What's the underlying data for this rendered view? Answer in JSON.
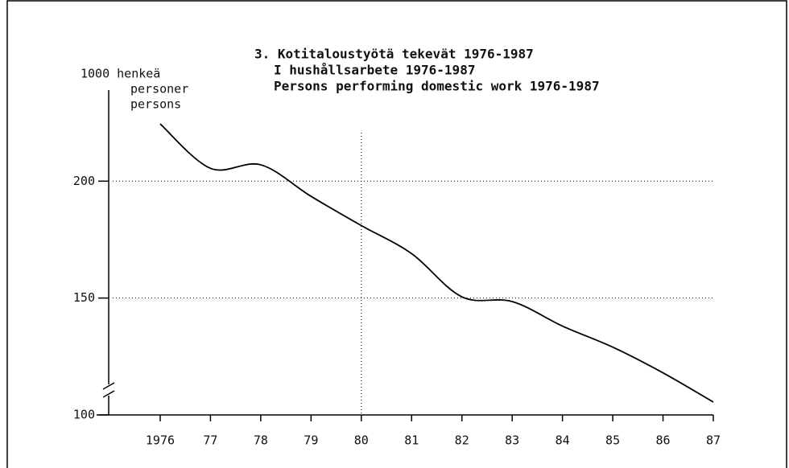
{
  "chart_data": {
    "type": "line",
    "title": [
      "3. Kotitaloustyötä tekevät 1976-1987",
      "I hushållsarbete 1976-1987",
      "Persons performing domestic work 1976-1987"
    ],
    "y_label": [
      "1000 henkeä",
      "personer",
      "persons"
    ],
    "x": [
      1976,
      1977,
      1978,
      1979,
      1980,
      1981,
      1982,
      1983,
      1984,
      1985,
      1986,
      1987
    ],
    "series": [
      {
        "color": "#000000",
        "values": [
          224.5,
          205.5,
          207,
          193.5,
          181,
          169,
          150.5,
          148.5,
          138,
          129,
          118,
          105.5
        ]
      }
    ],
    "xlim": [
      1975,
      1987
    ],
    "ylim": [
      100,
      240
    ],
    "xticks": [
      1976,
      {
        "value": 1977,
        "label": "77"
      },
      {
        "value": 1978,
        "label": "78"
      },
      {
        "value": 1979,
        "label": "79"
      },
      {
        "value": 1980,
        "label": "80"
      },
      {
        "value": 1981,
        "label": "81"
      },
      {
        "value": 1982,
        "label": "82"
      },
      {
        "value": 1983,
        "label": "83"
      },
      {
        "value": 1984,
        "label": "84"
      },
      {
        "value": 1985,
        "label": "85"
      },
      {
        "value": 1986,
        "label": "86"
      },
      {
        "value": 1987,
        "label": "87"
      }
    ],
    "yticks": [
      100,
      150,
      200
    ],
    "grid": true,
    "vgrid": [
      1980
    ]
  }
}
